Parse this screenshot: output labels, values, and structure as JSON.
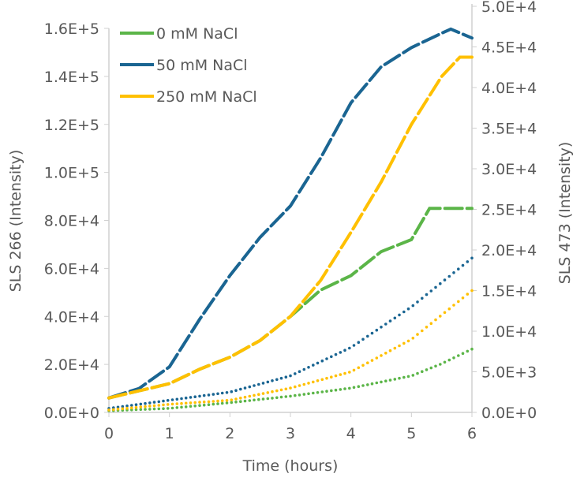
{
  "chart_data": {
    "type": "line",
    "xlabel": "Time (hours)",
    "ylabel": "SLS 266 (Intensity)",
    "y2label": "SLS 473 (Intensity)",
    "xlim": [
      0,
      6
    ],
    "ylim": [
      0,
      160000
    ],
    "y2lim": [
      0,
      50000
    ],
    "xticks": [
      "0",
      "1",
      "2",
      "3",
      "4",
      "5",
      "6"
    ],
    "yticks": [
      "0.0E+0",
      "2.0E+4",
      "4.0E+4",
      "6.0E+4",
      "8.0E+4",
      "1.0E+5",
      "1.2E+5",
      "1.4E+5",
      "1.6E+5"
    ],
    "y2ticks": [
      "0.0E+0",
      "5.0E+3",
      "1.0E+4",
      "1.5E+4",
      "2.0E+4",
      "2.5E+4",
      "3.0E+4",
      "3.5E+4",
      "4.0E+4",
      "4.5E+4",
      "5.0E+4"
    ],
    "grid": false,
    "legend_position": "top-left",
    "legend": [
      "0 mM NaCl",
      "50 mM NaCl",
      "250 mM NaCl"
    ],
    "series": [
      {
        "name": "0 mM NaCl",
        "axis": "left",
        "style": "dashed",
        "color": "#5bb548",
        "x": [
          0,
          0.5,
          1,
          1.5,
          2,
          2.5,
          3,
          3.5,
          4,
          4.5,
          5,
          5.3,
          5.5,
          6
        ],
        "y": [
          6000,
          9000,
          12000,
          18000,
          23000,
          30000,
          40000,
          51000,
          57000,
          67000,
          72000,
          85000,
          85000,
          85000
        ]
      },
      {
        "name": "50 mM NaCl",
        "axis": "left",
        "style": "dashed",
        "color": "#1a6592",
        "x": [
          0,
          0.5,
          1,
          1.5,
          2,
          2.5,
          3,
          3.5,
          4,
          4.5,
          5,
          5.5,
          5.65,
          6
        ],
        "y": [
          6000,
          10000,
          19000,
          38800,
          57000,
          73000,
          86000,
          106000,
          129000,
          144000,
          152000,
          158000,
          159700,
          156000
        ]
      },
      {
        "name": "250 mM NaCl",
        "axis": "left",
        "style": "dashed",
        "color": "#ffc000",
        "x": [
          0,
          0.5,
          1,
          1.5,
          2,
          2.5,
          3,
          3.5,
          4,
          4.5,
          5,
          5.5,
          5.8,
          6
        ],
        "y": [
          6000,
          9000,
          12000,
          18000,
          23000,
          30000,
          40000,
          55000,
          75000,
          96000,
          120000,
          140000,
          148000,
          148000
        ]
      },
      {
        "name": "0 mM NaCl",
        "axis": "right",
        "style": "dotted",
        "color": "#5bb548",
        "x": [
          0,
          1,
          2,
          3,
          4,
          5,
          5.5,
          6
        ],
        "y": [
          200,
          500,
          1200,
          2000,
          3000,
          4500,
          6000,
          7800
        ]
      },
      {
        "name": "50 mM NaCl",
        "axis": "right",
        "style": "dotted",
        "color": "#1a6592",
        "x": [
          0,
          1,
          2,
          3,
          4,
          5,
          6
        ],
        "y": [
          500,
          1500,
          2500,
          4500,
          8000,
          13000,
          19000
        ]
      },
      {
        "name": "250 mM NaCl",
        "axis": "right",
        "style": "dotted",
        "color": "#ffc000",
        "x": [
          0,
          1,
          2,
          3,
          4,
          5,
          6
        ],
        "y": [
          300,
          1000,
          1500,
          3000,
          5000,
          9000,
          15000
        ]
      }
    ]
  }
}
